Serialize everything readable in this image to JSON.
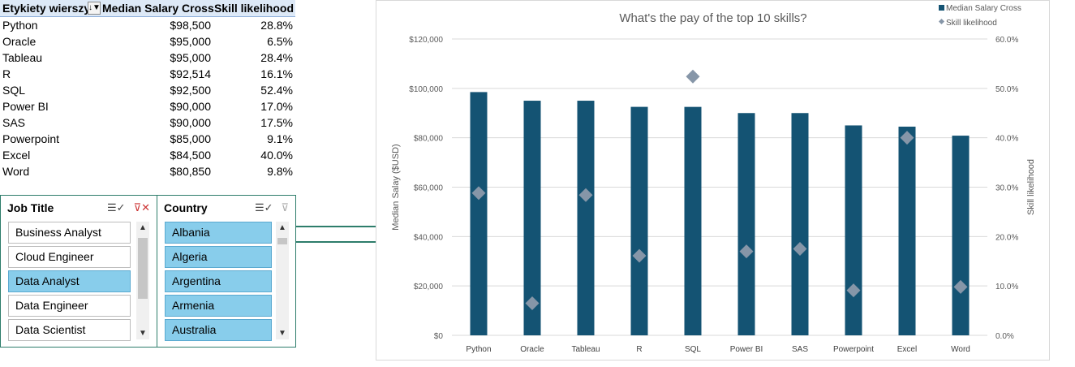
{
  "pivot": {
    "header": {
      "row_labels": "Etykiety wierszy",
      "filter_icon": "filter-sort-icon",
      "col_salary": "Median Salary Cross",
      "col_skill": "Skill likelihood"
    },
    "rows": [
      {
        "name": "Python",
        "salary": "$98,500",
        "skill": "28.8%"
      },
      {
        "name": "Oracle",
        "salary": "$95,000",
        "skill": "6.5%"
      },
      {
        "name": "Tableau",
        "salary": "$95,000",
        "skill": "28.4%"
      },
      {
        "name": "R",
        "salary": "$92,514",
        "skill": "16.1%"
      },
      {
        "name": "SQL",
        "salary": "$92,500",
        "skill": "52.4%"
      },
      {
        "name": "Power BI",
        "salary": "$90,000",
        "skill": "17.0%"
      },
      {
        "name": "SAS",
        "salary": "$90,000",
        "skill": "17.5%"
      },
      {
        "name": "Powerpoint",
        "salary": "$85,000",
        "skill": "9.1%"
      },
      {
        "name": "Excel",
        "salary": "$84,500",
        "skill": "40.0%"
      },
      {
        "name": "Word",
        "salary": "$80,850",
        "skill": "9.8%"
      }
    ]
  },
  "slicers": {
    "job_title": {
      "title": "Job Title",
      "items": [
        {
          "label": "Business Analyst",
          "selected": false
        },
        {
          "label": "Cloud Engineer",
          "selected": false
        },
        {
          "label": "Data Analyst",
          "selected": true
        },
        {
          "label": "Data Engineer",
          "selected": false
        },
        {
          "label": "Data Scientist",
          "selected": false
        }
      ]
    },
    "country": {
      "title": "Country",
      "items": [
        {
          "label": "Albania",
          "selected": true
        },
        {
          "label": "Algeria",
          "selected": true
        },
        {
          "label": "Argentina",
          "selected": true
        },
        {
          "label": "Armenia",
          "selected": true
        },
        {
          "label": "Australia",
          "selected": true
        }
      ]
    }
  },
  "colors": {
    "bar": "#145373",
    "marker": "#8696a8",
    "slicer_selected": "#88cdeb",
    "accent_border": "#2e7d6b"
  },
  "chart_data": {
    "type": "bar",
    "title": "What's the pay of the top 10 skills?",
    "categories": [
      "Python",
      "Oracle",
      "Tableau",
      "R",
      "SQL",
      "Power BI",
      "SAS",
      "Powerpoint",
      "Excel",
      "Word"
    ],
    "series": [
      {
        "name": "Median Salary Cross",
        "kind": "bar",
        "axis": "left",
        "values": [
          98500,
          95000,
          95000,
          92514,
          92500,
          90000,
          90000,
          85000,
          84500,
          80850
        ]
      },
      {
        "name": "Skill likelihood",
        "kind": "marker",
        "axis": "right",
        "values": [
          28.8,
          6.5,
          28.4,
          16.1,
          52.4,
          17.0,
          17.5,
          9.1,
          40.0,
          9.8
        ]
      }
    ],
    "ylabel": "Median Salay ($USD)",
    "y2label": "Skill likelihood",
    "ylim": [
      0,
      120000
    ],
    "y2lim": [
      0,
      60
    ],
    "yticks": [
      "$0",
      "$20,000",
      "$40,000",
      "$60,000",
      "$80,000",
      "$100,000",
      "$120,000"
    ],
    "y2ticks": [
      "0.0%",
      "10.0%",
      "20.0%",
      "30.0%",
      "40.0%",
      "50.0%",
      "60.0%"
    ],
    "grid": true,
    "legend_position": "top-right"
  }
}
